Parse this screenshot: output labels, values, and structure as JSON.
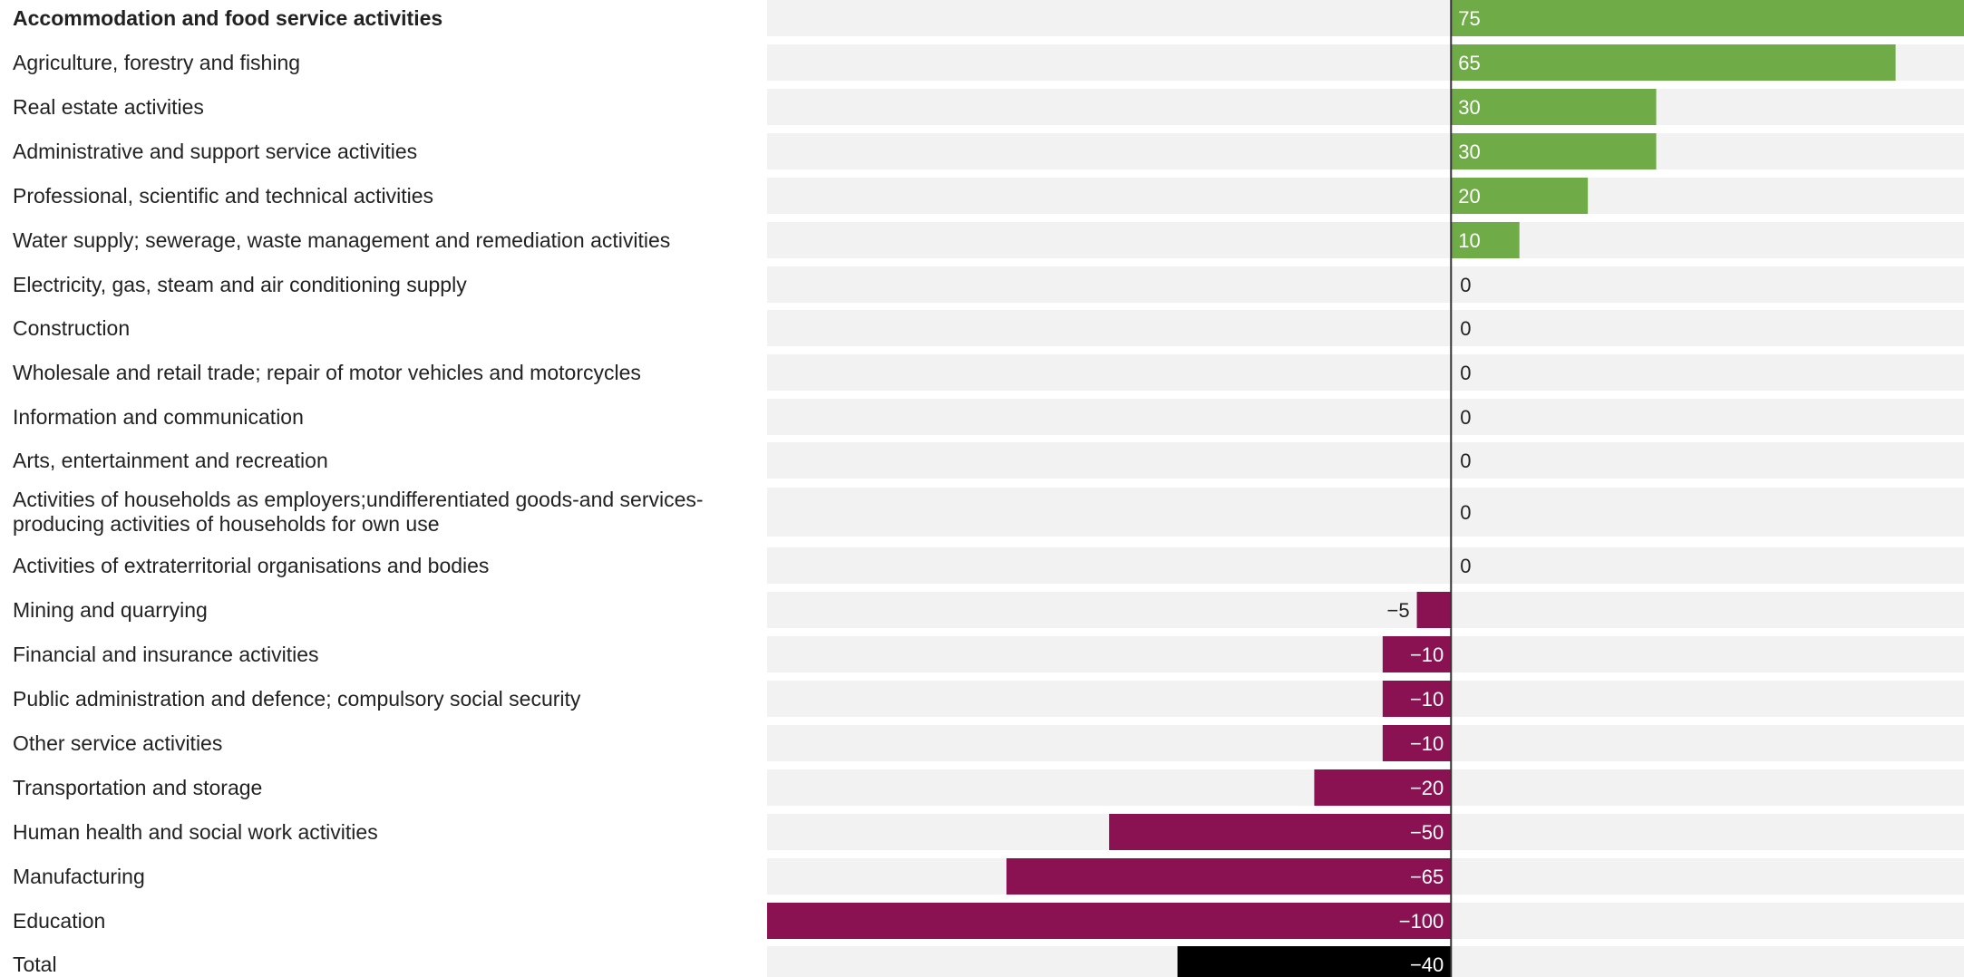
{
  "chart_data": {
    "type": "bar",
    "orientation": "horizontal",
    "title": "",
    "xlabel": "",
    "ylabel": "",
    "xlim": [
      -100,
      75
    ],
    "grid": false,
    "legend": "none",
    "colors": {
      "positive": "#6fab46",
      "negative": "#8a1252",
      "total": "#000000",
      "track": "#f2f2f2",
      "axis": "#333333"
    },
    "highlight_category": "Accommodation and food service activities",
    "total_category": "Total",
    "categories": [
      "Accommodation and food service activities",
      "Agriculture, forestry and fishing",
      "Real estate activities",
      "Administrative and support service activities",
      "Professional, scientific and technical activities",
      "Water supply; sewerage, waste management and remediation activities",
      "Electricity, gas, steam and air conditioning supply",
      "Construction",
      "Wholesale and retail trade; repair of motor vehicles and motorcycles",
      "Information and communication",
      "Arts, entertainment and recreation",
      "Activities of households as employers;undifferentiated goods-and services-producing activities of households for own use",
      "Activities of extraterritorial organisations and bodies",
      "Mining and quarrying",
      "Financial and insurance activities",
      "Public administration and defence; compulsory social security",
      "Other service activities",
      "Transportation and storage",
      "Human health and social work activities",
      "Manufacturing",
      "Education",
      "Total"
    ],
    "label_lines": [
      [
        "Accommodation and food service activities"
      ],
      [
        "Agriculture, forestry and fishing"
      ],
      [
        "Real estate activities"
      ],
      [
        "Administrative and support service activities"
      ],
      [
        "Professional, scientific and technical activities"
      ],
      [
        "Water supply; sewerage, waste management and remediation activities"
      ],
      [
        "Electricity, gas, steam and air conditioning supply"
      ],
      [
        "Construction"
      ],
      [
        "Wholesale and retail trade; repair of motor vehicles and motorcycles"
      ],
      [
        "Information and communication"
      ],
      [
        "Arts, entertainment and recreation"
      ],
      [
        "Activities of households as employers;undifferentiated goods-and services-",
        "producing activities of households for own use"
      ],
      [
        "Activities of extraterritorial organisations and bodies"
      ],
      [
        "Mining and quarrying"
      ],
      [
        "Financial and insurance activities"
      ],
      [
        "Public administration and defence; compulsory social security"
      ],
      [
        "Other service activities"
      ],
      [
        "Transportation and storage"
      ],
      [
        "Human health and social work activities"
      ],
      [
        "Manufacturing"
      ],
      [
        "Education"
      ],
      [
        "Total"
      ]
    ],
    "values": [
      75,
      65,
      30,
      30,
      20,
      10,
      0,
      0,
      0,
      0,
      0,
      0,
      0,
      -5,
      -10,
      -10,
      -10,
      -20,
      -50,
      -65,
      -100,
      -40
    ],
    "value_labels": [
      "75",
      "65",
      "30",
      "30",
      "20",
      "10",
      "0",
      "0",
      "0",
      "0",
      "0",
      "0",
      "0",
      "−5",
      "−10",
      "−10",
      "−10",
      "−20",
      "−50",
      "−65",
      "−100",
      "−40"
    ]
  }
}
